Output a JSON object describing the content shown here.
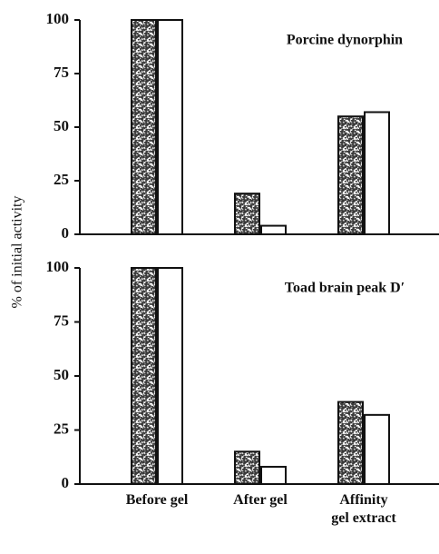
{
  "chart_data": [
    {
      "type": "bar",
      "title": "Porcine dynorphin",
      "y_label": "% of initial activity",
      "categories": [
        null,
        null,
        null
      ],
      "series": [
        {
          "color": "#3a3a3a",
          "pattern": "stipple",
          "values": [
            100,
            19,
            55
          ]
        },
        {
          "color": "#ffffff",
          "values": [
            100,
            4,
            57
          ]
        }
      ],
      "ylim": [
        0,
        100
      ],
      "yticks": [
        0,
        25,
        50,
        75,
        100
      ]
    },
    {
      "type": "bar",
      "title": "Toad brain peak D′",
      "categories": [
        "Before gel",
        "After gel",
        "Affinity gel extract"
      ],
      "series": [
        {
          "color": "#3a3a3a",
          "pattern": "stipple",
          "values": [
            100,
            15,
            38
          ]
        },
        {
          "color": "#ffffff",
          "values": [
            100,
            8,
            32
          ]
        }
      ],
      "ylim": [
        0,
        100
      ],
      "yticks": [
        0,
        25,
        50,
        75,
        100
      ]
    }
  ]
}
